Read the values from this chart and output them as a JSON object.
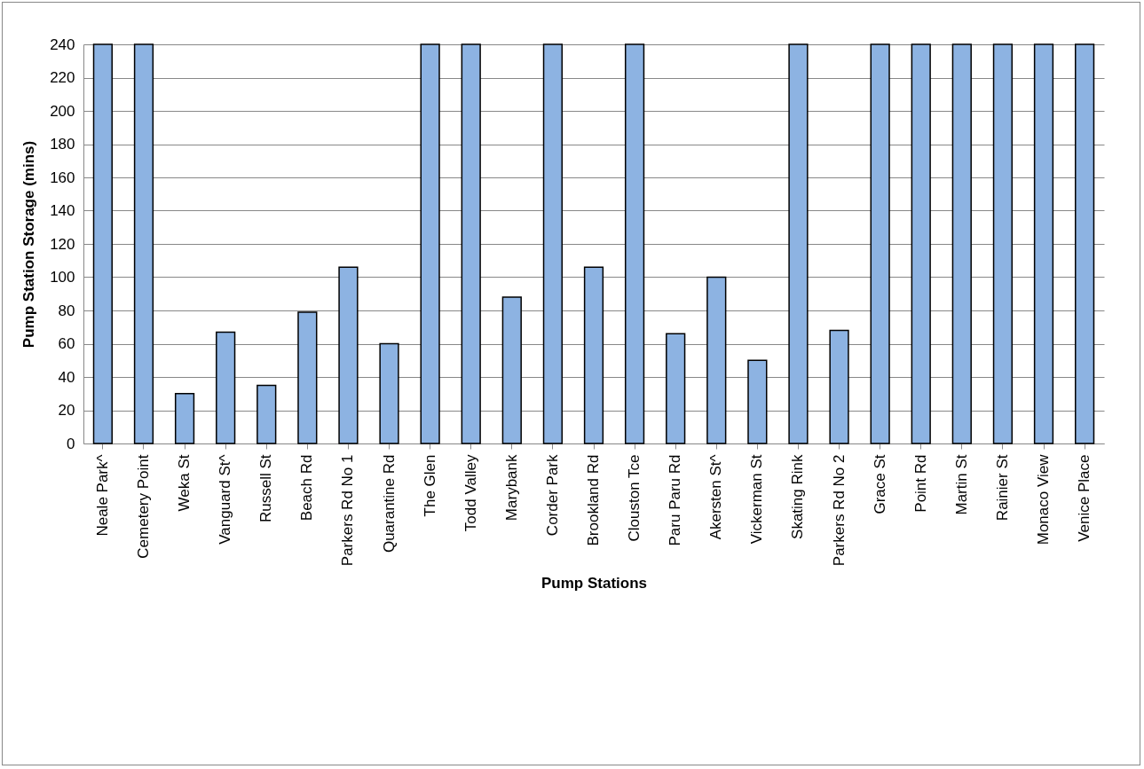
{
  "chart_data": {
    "type": "bar",
    "xlabel": "Pump Stations",
    "ylabel": "Pump Station Storage (mins)",
    "categories": [
      "Neale Park^",
      "Cemetery Point",
      "Weka St",
      "Vanguard St^",
      "Russell St",
      "Beach Rd",
      "Parkers Rd No 1",
      "Quarantine Rd",
      "The Glen",
      "Todd Valley",
      "Marybank",
      "Corder Park",
      "Brookland Rd",
      "Clouston Tce",
      "Paru Paru Rd",
      "Akersten St^",
      "Vickerman St",
      "Skating Rink",
      "Parkers Rd No 2",
      "Grace St",
      "Point Rd",
      "Martin St",
      "Rainier St",
      "Monaco View",
      "Venice Place"
    ],
    "values": [
      240,
      240,
      30,
      67,
      35,
      79,
      106,
      60,
      240,
      240,
      88,
      240,
      106,
      240,
      66,
      100,
      50,
      240,
      68,
      240,
      240,
      240,
      240,
      240,
      240
    ],
    "color": "#8db3e2",
    "ylim": [
      0,
      240
    ],
    "yticks": [
      0,
      20,
      40,
      60,
      80,
      100,
      120,
      140,
      160,
      180,
      200,
      220,
      240
    ],
    "grid": "y"
  }
}
